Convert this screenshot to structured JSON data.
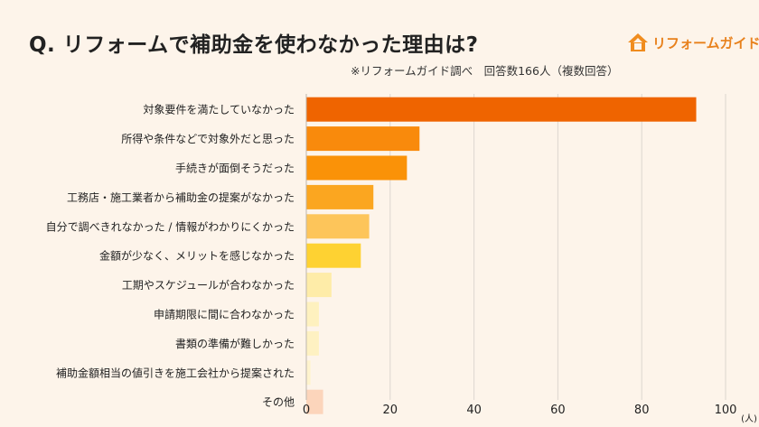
{
  "title": "Q. リフォームで補助金を使わなかった理由は?",
  "subtitle": "※リフォームガイド調べ　回答数166人（複数回答）",
  "logo": {
    "text": "リフォームガイド",
    "icon": "house-icon",
    "color": "#f08c1e"
  },
  "chart_data": {
    "type": "bar",
    "orientation": "horizontal",
    "categories": [
      "対象要件を満たしていなかった",
      "所得や条件などで対象外だと思った",
      "手続きが面倒そうだった",
      "工務店・施工業者から補助金の提案がなかった",
      "自分で調べきれなかった / 情報がわかりにくかった",
      "金額が少なく、メリットを感じなかった",
      "工期やスケジュールが合わなかった",
      "申請期限に間に合わなかった",
      "書類の準備が難しかった",
      "補助金額相当の値引きを施工会社から提案された",
      "その他"
    ],
    "values": [
      93,
      27,
      24,
      16,
      15,
      13,
      6,
      3,
      3,
      1,
      4
    ],
    "colors": [
      "#ef6400",
      "#f98a0c",
      "#fa9208",
      "#fba620",
      "#fdc55a",
      "#fed232",
      "#feeca8",
      "#fef1bf",
      "#fef1c2",
      "#fef3cd",
      "#fcd5bb"
    ],
    "x_ticks": [
      "0",
      "20",
      "40",
      "60",
      "80",
      "100"
    ],
    "xlim": [
      0,
      100
    ],
    "unit": "(人)",
    "grid": true
  }
}
